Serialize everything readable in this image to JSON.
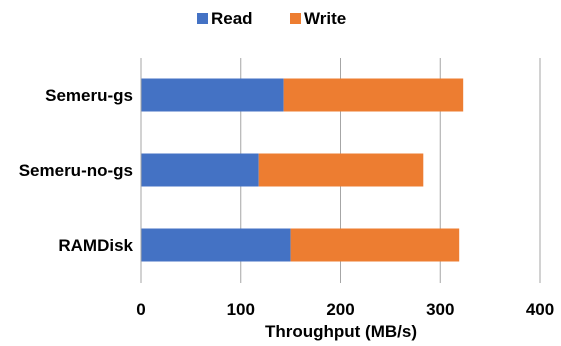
{
  "chart_data": {
    "type": "bar",
    "orientation": "horizontal",
    "stacked": true,
    "categories": [
      "Semeru-gs",
      "Semeru-no-gs",
      "RAMDisk"
    ],
    "series": [
      {
        "name": "Read",
        "color": "#4472C4",
        "values": [
          143,
          118,
          150
        ]
      },
      {
        "name": "Write",
        "color": "#ED7D31",
        "values": [
          180,
          165,
          169
        ]
      }
    ],
    "title": "",
    "xlabel": "Throughput (MB/s)",
    "ylabel": "",
    "xlim": [
      0,
      400
    ],
    "xticks": [
      "0",
      "100",
      "200",
      "300",
      "400"
    ],
    "grid": "vertical",
    "legend": "top"
  }
}
